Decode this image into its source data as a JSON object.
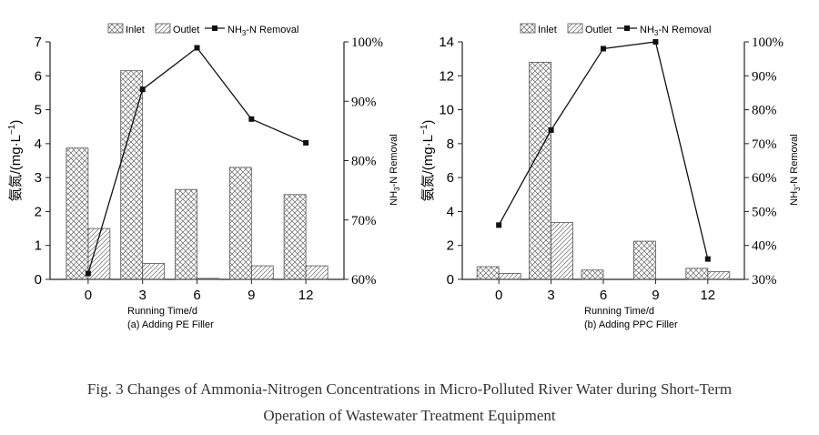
{
  "figure": {
    "caption_line1": "Fig. 3    Changes of Ammonia-Nitrogen Concentrations in Micro-Polluted River Water during Short-Term",
    "caption_line2": "Operation of Wastewater Treatment Equipment"
  },
  "legend": {
    "inlet": "Inlet",
    "outlet": "Outlet",
    "removal_prefix": "NH",
    "removal_sub": "3",
    "removal_suffix": "-N Removal"
  },
  "left_axis_label": "氨氮/(mg·L",
  "left_axis_sup": "−1",
  "left_axis_close": ")",
  "right_axis_label_prefix": "NH",
  "right_axis_label_sub": "3",
  "right_axis_label_suffix": "-N Removal",
  "xlabel": "Running Time/d",
  "colors": {
    "bar_stroke": "#555555",
    "line": "#111111"
  },
  "chart_data": [
    {
      "type": "bar",
      "subtitle": "(a) Adding PE Filler",
      "categories": [
        "0",
        "3",
        "6",
        "9",
        "12"
      ],
      "series": [
        {
          "name": "Inlet",
          "type": "bar",
          "values": [
            3.87,
            6.15,
            2.65,
            3.3,
            2.5
          ]
        },
        {
          "name": "Outlet",
          "type": "bar",
          "values": [
            1.5,
            0.47,
            0.03,
            0.4,
            0.4
          ]
        },
        {
          "name": "NH3-N Removal",
          "type": "line",
          "axis": "right",
          "values": [
            61,
            92,
            99,
            87,
            83
          ]
        }
      ],
      "ylim": [
        0,
        7
      ],
      "yticks": [
        "0",
        "1",
        "2",
        "3",
        "4",
        "5",
        "6",
        "7"
      ],
      "y2lim": [
        60,
        100
      ],
      "y2ticks": [
        "60%",
        "70%",
        "80%",
        "90%",
        "100%"
      ]
    },
    {
      "type": "bar",
      "subtitle": "(b) Adding PPC Filler",
      "categories": [
        "0",
        "3",
        "6",
        "9",
        "12"
      ],
      "series": [
        {
          "name": "Inlet",
          "type": "bar",
          "values": [
            0.75,
            12.8,
            0.55,
            2.25,
            0.65
          ]
        },
        {
          "name": "Outlet",
          "type": "bar",
          "values": [
            0.35,
            3.35,
            0,
            0,
            0.45
          ]
        },
        {
          "name": "NH3-N Removal",
          "type": "line",
          "axis": "right",
          "values": [
            46,
            74,
            98,
            100,
            36
          ]
        }
      ],
      "ylim": [
        0,
        14
      ],
      "yticks": [
        "0",
        "2",
        "4",
        "6",
        "8",
        "10",
        "12",
        "14"
      ],
      "y2lim": [
        30,
        100
      ],
      "y2ticks": [
        "30%",
        "40%",
        "50%",
        "60%",
        "70%",
        "80%",
        "90%",
        "100%"
      ]
    }
  ]
}
